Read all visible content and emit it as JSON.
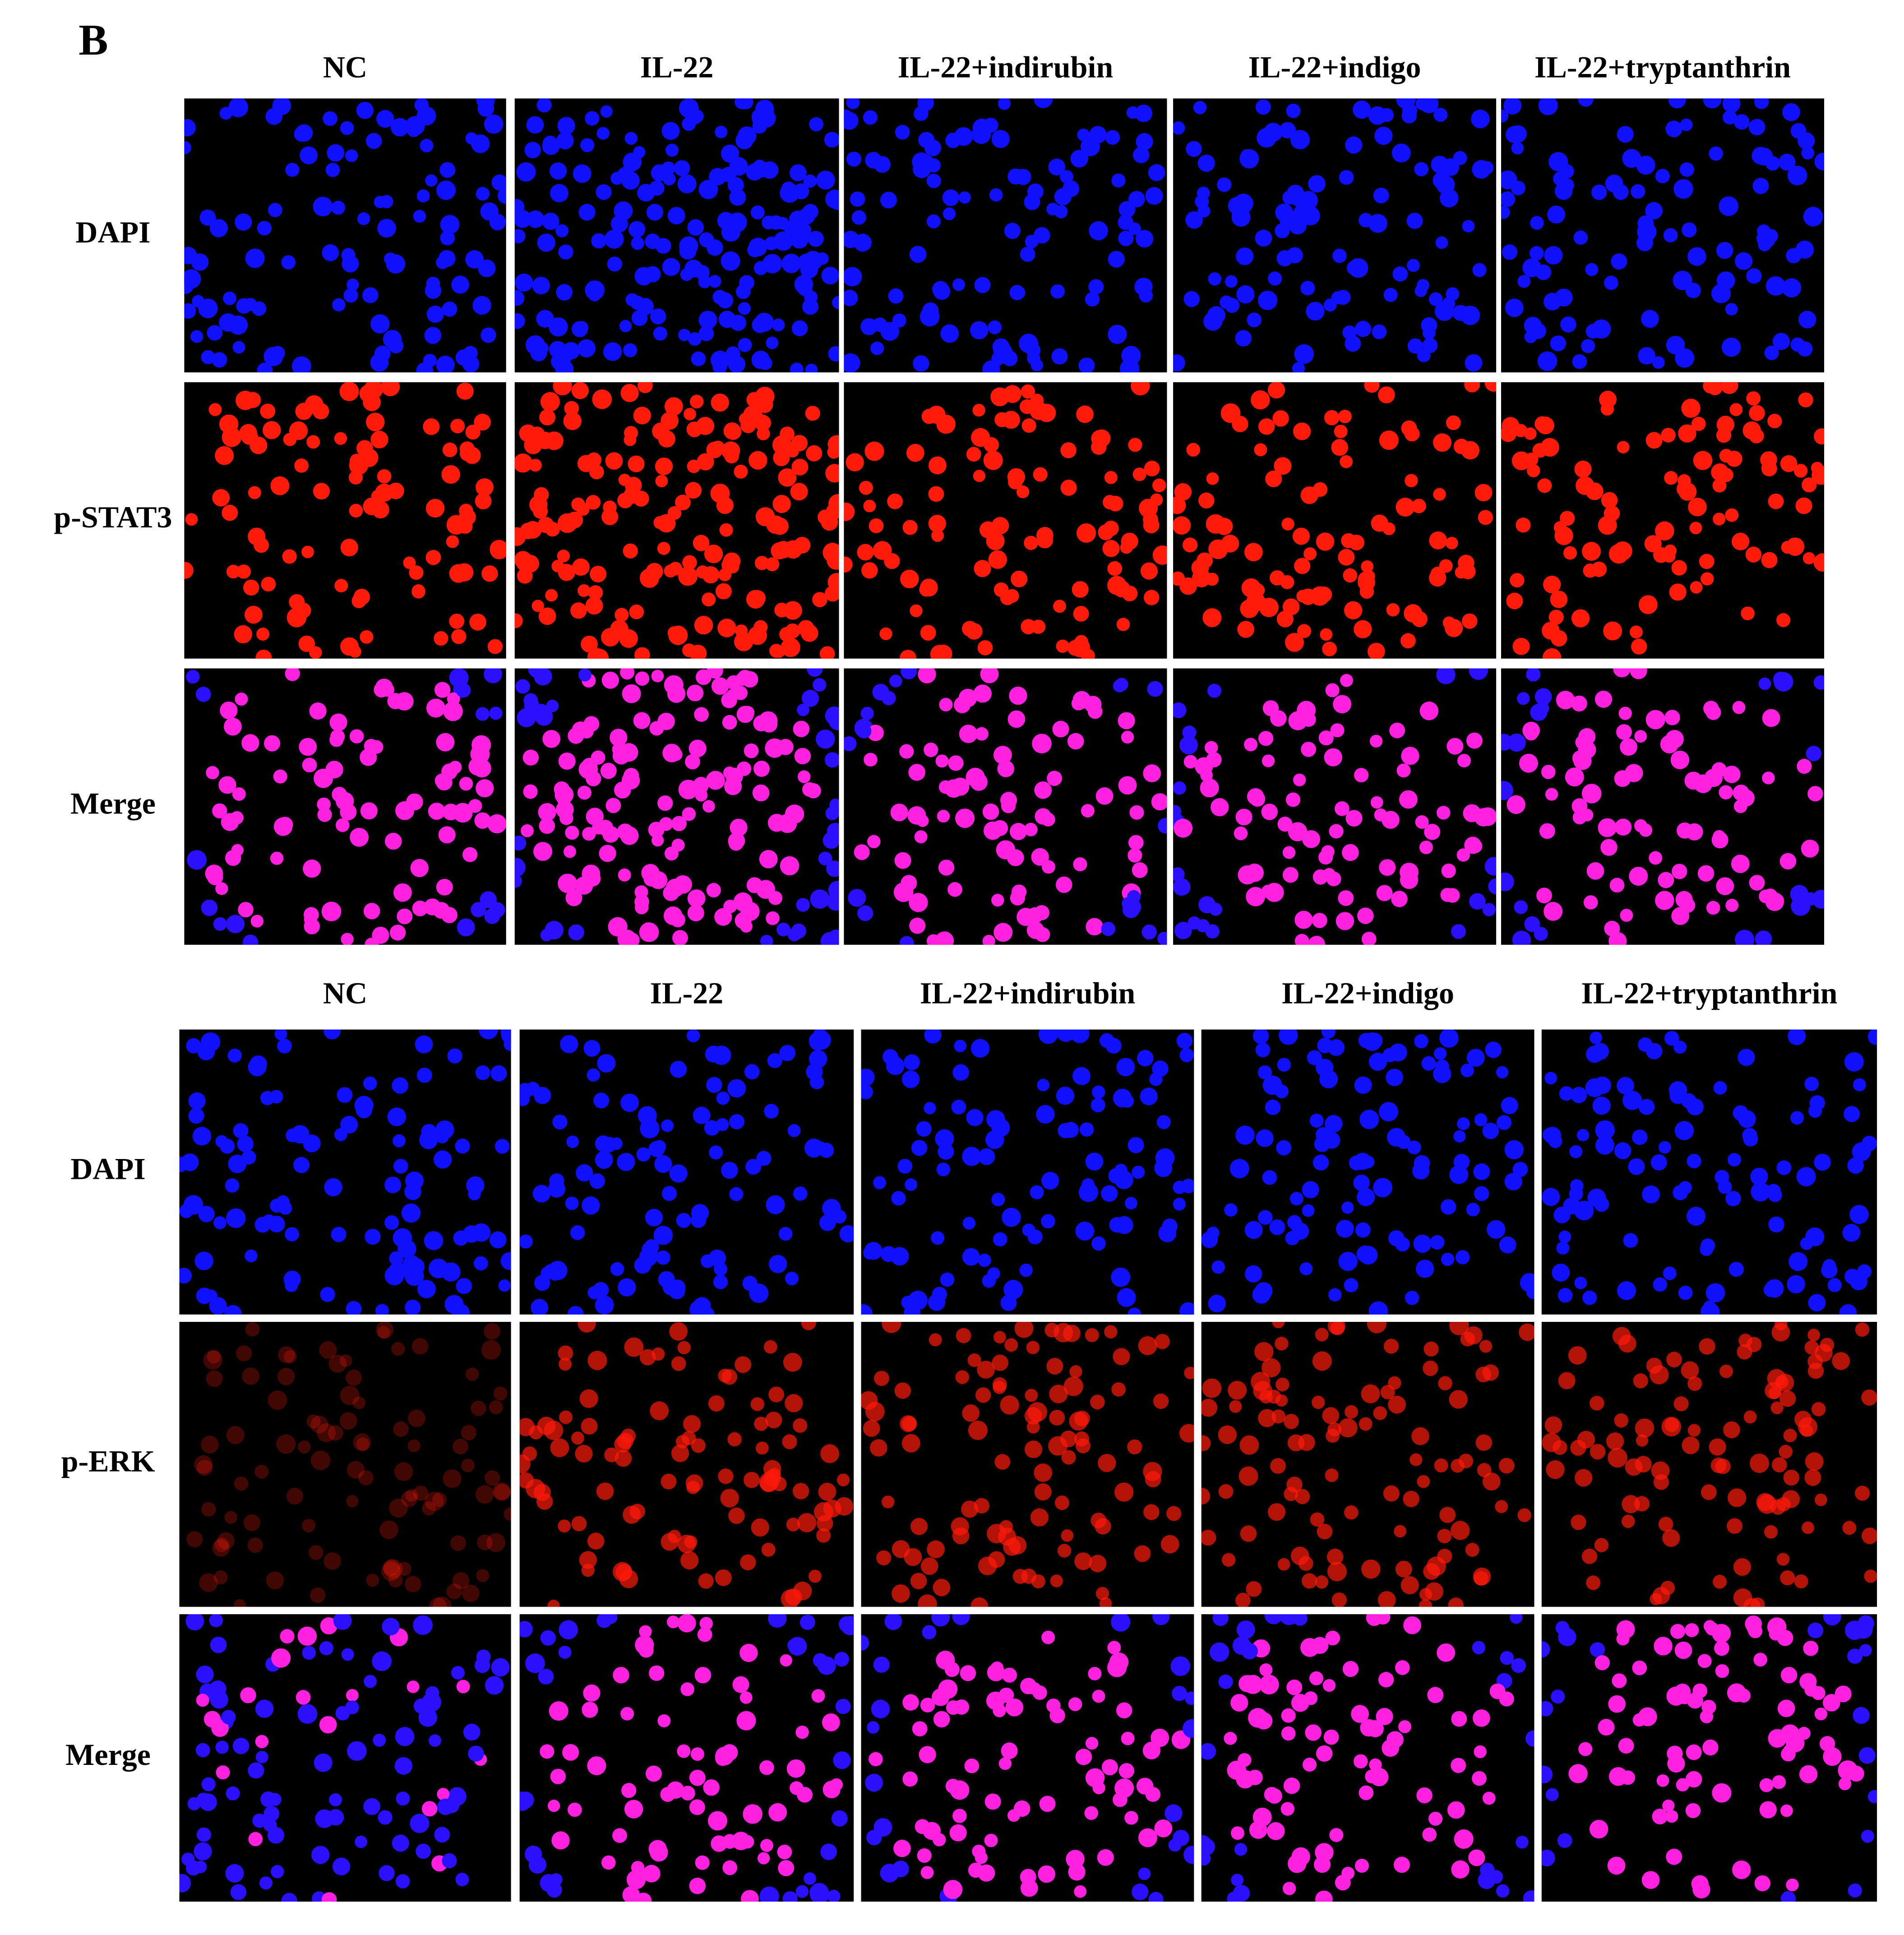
{
  "panel_label": "B",
  "blocks": [
    {
      "columns": [
        "NC",
        "IL-22",
        "IL-22+indirubin",
        "IL-22+indigo",
        "IL-22+tryptanthrin"
      ],
      "rows": [
        "DAPI",
        "p-STAT3",
        "Merge"
      ]
    },
    {
      "columns": [
        "NC",
        "IL-22",
        "IL-22+indirubin",
        "IL-22+indigo",
        "IL-22+tryptanthrin"
      ],
      "rows": [
        "DAPI",
        "p-ERK",
        "Merge"
      ]
    }
  ]
}
